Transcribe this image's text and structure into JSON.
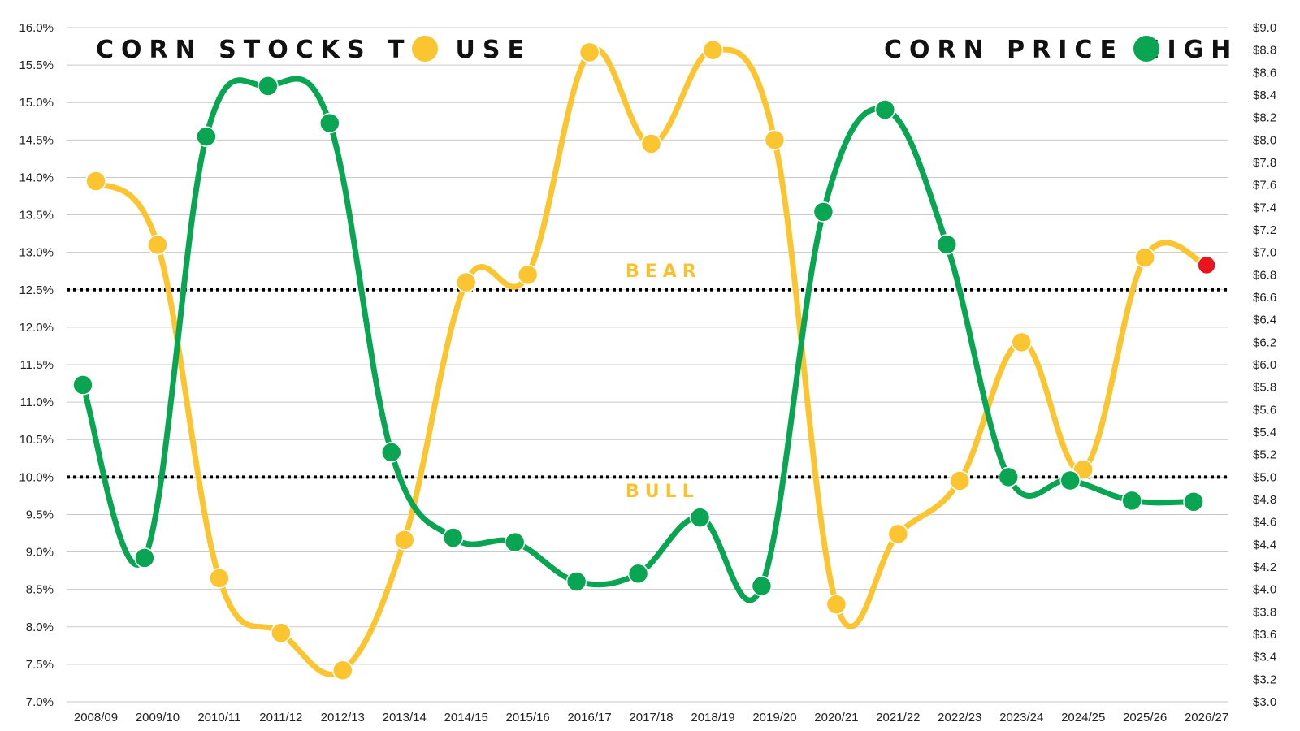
{
  "chart_data": {
    "type": "line",
    "title": "",
    "categories": [
      "2008/09",
      "2009/10",
      "2010/11",
      "2011/12",
      "2012/13",
      "2013/14",
      "2014/15",
      "2015/16",
      "2016/17",
      "2017/18",
      "2018/19",
      "2019/20",
      "2020/21",
      "2021/22",
      "2022/23",
      "2023/24",
      "2024/25",
      "2025/26",
      "2026/27"
    ],
    "left_axis": {
      "min": 7.0,
      "max": 16.0,
      "step": 0.5,
      "format": "percent",
      "ticks": [
        "16.0%",
        "15.5%",
        "15.0%",
        "14.5%",
        "14.0%",
        "13.5%",
        "13.0%",
        "12.5%",
        "12.0%",
        "11.5%",
        "11.0%",
        "10.5%",
        "10.0%",
        "9.5%",
        "9.0%",
        "8.5%",
        "8.0%",
        "7.5%",
        "7.0%"
      ]
    },
    "right_axis": {
      "min": 3.0,
      "max": 9.0,
      "step": 0.2,
      "format": "dollar",
      "ticks": [
        "$9.0",
        "$8.8",
        "$8.6",
        "$8.4",
        "$8.2",
        "$8.0",
        "$7.8",
        "$7.6",
        "$7.4",
        "$7.2",
        "$7.0",
        "$6.8",
        "$6.6",
        "$6.4",
        "$6.2",
        "$6.0",
        "$5.8",
        "$5.6",
        "$5.4",
        "$5.2",
        "$5.0",
        "$4.8",
        "$4.6",
        "$4.4",
        "$4.2",
        "$4.0",
        "$3.8",
        "$3.6",
        "$3.4",
        "$3.2",
        "$3.0"
      ]
    },
    "grid": true,
    "series": [
      {
        "name": "CORN STOCKS TO USE",
        "axis": "left",
        "color": "#FBC531",
        "highlight_last_color": "#E8141E",
        "values": [
          13.95,
          13.1,
          8.65,
          7.92,
          7.42,
          9.16,
          12.6,
          12.7,
          15.67,
          14.45,
          15.7,
          14.5,
          8.3,
          9.24,
          9.95,
          11.8,
          10.1,
          12.93,
          12.83
        ]
      },
      {
        "name": "CORN PRICE HIGH",
        "axis": "right",
        "color": "#0AA552",
        "values": [
          5.82,
          4.28,
          8.03,
          8.48,
          8.15,
          5.22,
          4.46,
          4.42,
          4.07,
          4.14,
          4.64,
          4.03,
          7.36,
          8.27,
          7.07,
          5.0,
          4.97,
          4.79,
          4.78
        ]
      }
    ],
    "reference_lines": [
      {
        "axis": "left",
        "value": 12.5,
        "label": "BEAR",
        "label_position": "above"
      },
      {
        "axis": "left",
        "value": 10.0,
        "label": "BULL",
        "label_position": "below"
      }
    ],
    "legend": [
      {
        "label": "CORN STOCKS TO USE",
        "color": "#FBC531",
        "placement": "top-left"
      },
      {
        "label": "CORN PRICE HIGH",
        "color": "#0AA552",
        "placement": "top-right"
      }
    ]
  }
}
